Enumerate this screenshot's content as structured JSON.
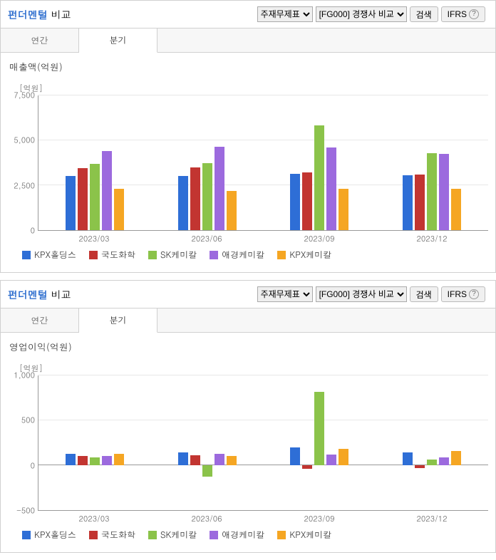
{
  "panels": [
    {
      "header": {
        "title_em": "펀더멘털",
        "title_rest": " 비교",
        "select1": "주재무제표",
        "select2": "[FG000] 경쟁사 비교",
        "search_btn": "검색",
        "ifrs_btn": "IFRS"
      },
      "tabs": {
        "annual": "연간",
        "quarter": "분기",
        "active": "quarter"
      },
      "chart": {
        "title": "매출액(억원)",
        "y_unit": "[억원]",
        "type": "bar",
        "ylim": [
          0,
          7500
        ],
        "yticks": [
          0,
          2500,
          5000,
          7500
        ],
        "categories": [
          "2023/03",
          "2023/06",
          "2023/09",
          "2023/12"
        ],
        "series": [
          {
            "name": "KPX홀딩스",
            "color": "#2e6ed6",
            "values": [
              3000,
              3000,
              3150,
              3050
            ]
          },
          {
            "name": "국도화학",
            "color": "#c23531",
            "values": [
              3450,
              3500,
              3200,
              3100
            ]
          },
          {
            "name": "SK케미칼",
            "color": "#8bc34a",
            "values": [
              3700,
              3750,
              5850,
              4300
            ]
          },
          {
            "name": "애경케미칼",
            "color": "#9c6ade",
            "values": [
              4400,
              4650,
              4600,
              4250
            ]
          },
          {
            "name": "KPX케미칼",
            "color": "#f5a623",
            "values": [
              2300,
              2200,
              2300,
              2300
            ]
          }
        ],
        "grid_color": "#e8e8e8",
        "axis_color": "#999999",
        "background": "#ffffff"
      }
    },
    {
      "header": {
        "title_em": "펀더멘털",
        "title_rest": " 비교",
        "select1": "주재무제표",
        "select2": "[FG000] 경쟁사 비교",
        "search_btn": "검색",
        "ifrs_btn": "IFRS"
      },
      "tabs": {
        "annual": "연간",
        "quarter": "분기",
        "active": "quarter"
      },
      "chart": {
        "title": "영업이익(억원)",
        "y_unit": "[억원]",
        "type": "bar",
        "ylim": [
          -500,
          1000
        ],
        "yticks": [
          -500,
          0,
          500,
          1000
        ],
        "categories": [
          "2023/03",
          "2023/06",
          "2023/09",
          "2023/12"
        ],
        "series": [
          {
            "name": "KPX홀딩스",
            "color": "#2e6ed6",
            "values": [
              130,
              140,
              200,
              140
            ]
          },
          {
            "name": "국도화학",
            "color": "#c23531",
            "values": [
              100,
              110,
              -40,
              -30
            ]
          },
          {
            "name": "SK케미칼",
            "color": "#8bc34a",
            "values": [
              90,
              -130,
              820,
              60
            ]
          },
          {
            "name": "애경케미칼",
            "color": "#9c6ade",
            "values": [
              100,
              130,
              120,
              90
            ]
          },
          {
            "name": "KPX케미칼",
            "color": "#f5a623",
            "values": [
              130,
              100,
              180,
              160
            ]
          }
        ],
        "grid_color": "#e8e8e8",
        "axis_color": "#999999",
        "background": "#ffffff"
      }
    }
  ]
}
